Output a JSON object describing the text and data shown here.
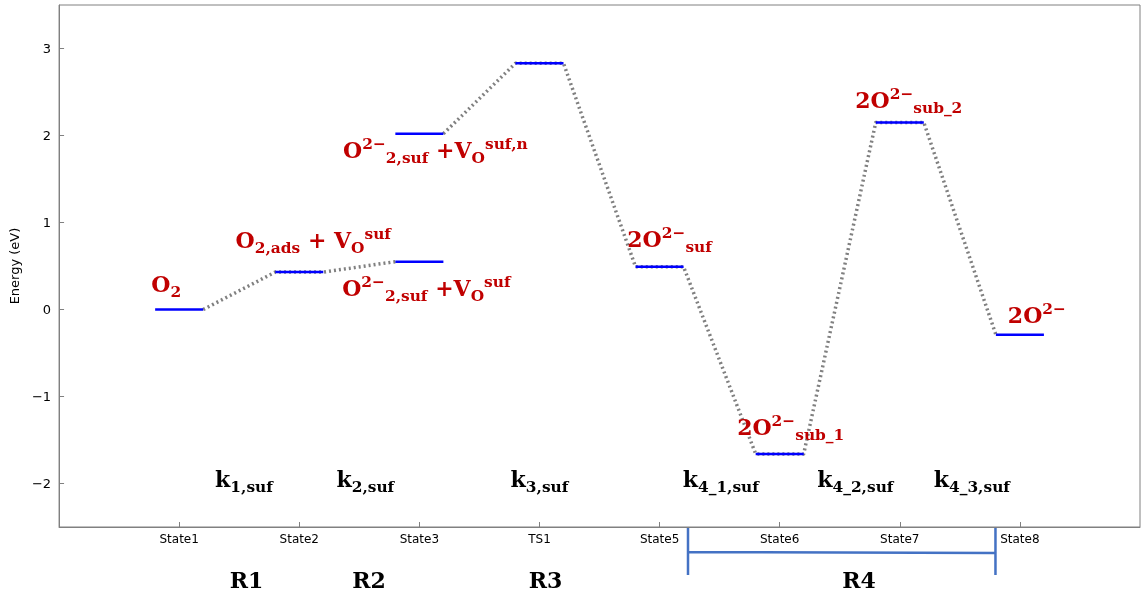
{
  "chart_data": {
    "type": "line",
    "ylabel": "Energy (eV)",
    "categories": [
      null,
      null,
      null,
      null,
      null,
      "State1",
      null,
      null,
      null,
      null,
      "State2",
      null,
      null,
      null,
      null,
      "State3",
      null,
      null,
      null,
      null,
      "TS1",
      null,
      null,
      null,
      null,
      "State5",
      null,
      null,
      null,
      null,
      "State6",
      null,
      null,
      null,
      null,
      "State7",
      null,
      null,
      null,
      null,
      "State8",
      null,
      null,
      null,
      null,
      null
    ],
    "ylim": [
      -2.5,
      3.5
    ],
    "yticks": [
      -2,
      -1,
      0,
      1,
      2,
      3
    ],
    "grid": false,
    "series": [
      {
        "color": "#808080",
        "line_style": "dotted",
        "values": [
          null,
          null,
          null,
          null,
          null,
          null,
          0,
          null,
          null,
          0.43,
          null,
          0.43,
          null,
          null,
          0.55,
          null,
          null,
          null,
          null,
          null,
          null,
          null,
          null,
          null,
          null,
          null,
          null,
          null,
          null,
          null,
          null,
          null,
          null,
          null,
          null,
          null,
          null,
          null,
          null,
          null,
          null,
          null,
          null,
          null,
          null,
          null
        ]
      },
      {
        "color": "#808080",
        "line_style": "dotted",
        "values": [
          null,
          null,
          null,
          null,
          null,
          null,
          null,
          null,
          null,
          null,
          null,
          null,
          null,
          null,
          null,
          null,
          2.02,
          null,
          null,
          2.83,
          null,
          2.83,
          null,
          null,
          0.49,
          null,
          0.49,
          null,
          null,
          -1.66,
          null,
          -1.66,
          null,
          null,
          2.15,
          null,
          2.15,
          null,
          null,
          -0.29,
          null,
          null,
          null,
          null,
          null,
          null
        ]
      },
      {
        "color": "#0000ff",
        "line_style": "solid",
        "values": [
          null,
          null,
          null,
          null,
          0,
          0,
          0,
          null,
          null,
          null,
          null,
          null,
          null,
          null,
          null,
          null,
          null,
          null,
          null,
          null,
          null,
          null,
          null,
          null,
          null,
          null,
          null,
          null,
          null,
          null,
          null,
          null,
          null,
          null,
          null,
          null,
          null,
          null,
          null,
          null,
          null,
          null,
          null,
          null,
          null,
          null
        ]
      },
      {
        "color": "#0000ff",
        "line_style": "solid",
        "values": [
          null,
          null,
          null,
          null,
          null,
          null,
          null,
          null,
          null,
          0.43,
          0.43,
          0.43,
          null,
          null,
          null,
          null,
          null,
          null,
          null,
          null,
          null,
          null,
          null,
          null,
          null,
          null,
          null,
          null,
          null,
          null,
          null,
          null,
          null,
          null,
          null,
          null,
          null,
          null,
          null,
          null,
          null,
          null,
          null,
          null,
          null,
          null
        ]
      },
      {
        "color": "#0000ff",
        "line_style": "solid",
        "values": [
          null,
          null,
          null,
          null,
          null,
          null,
          null,
          null,
          null,
          null,
          null,
          null,
          null,
          null,
          0.55,
          0.55,
          0.55,
          null,
          null,
          null,
          null,
          null,
          null,
          null,
          null,
          null,
          null,
          null,
          null,
          null,
          null,
          null,
          null,
          null,
          null,
          null,
          null,
          null,
          null,
          null,
          null,
          null,
          null,
          null,
          null,
          null
        ]
      },
      {
        "color": "#0000ff",
        "line_style": "solid",
        "values": [
          null,
          null,
          null,
          null,
          null,
          null,
          null,
          null,
          null,
          null,
          null,
          null,
          null,
          null,
          2.02,
          2.02,
          2.02,
          null,
          null,
          null,
          null,
          null,
          null,
          null,
          null,
          null,
          null,
          null,
          null,
          null,
          null,
          null,
          null,
          null,
          null,
          null,
          null,
          null,
          null,
          null,
          null,
          null,
          null,
          null,
          null,
          null
        ]
      },
      {
        "color": "#0000ff",
        "line_style": "solid",
        "values": [
          null,
          null,
          null,
          null,
          null,
          null,
          null,
          null,
          null,
          null,
          null,
          null,
          null,
          null,
          null,
          null,
          null,
          null,
          null,
          2.83,
          2.83,
          2.83,
          null,
          null,
          null,
          null,
          null,
          null,
          null,
          null,
          null,
          null,
          null,
          null,
          null,
          null,
          null,
          null,
          null,
          null,
          null,
          null,
          null,
          null,
          null,
          null
        ]
      },
      {
        "color": "#0000ff",
        "line_style": "solid",
        "values": [
          null,
          null,
          null,
          null,
          null,
          null,
          null,
          null,
          null,
          null,
          null,
          null,
          null,
          null,
          null,
          null,
          null,
          null,
          null,
          null,
          null,
          null,
          null,
          null,
          0.49,
          0.49,
          0.49,
          null,
          null,
          null,
          null,
          null,
          null,
          null,
          null,
          null,
          null,
          null,
          null,
          null,
          null,
          null,
          null,
          null,
          null,
          null
        ]
      },
      {
        "color": "#0000ff",
        "line_style": "solid",
        "values": [
          null,
          null,
          null,
          null,
          null,
          null,
          null,
          null,
          null,
          null,
          null,
          null,
          null,
          null,
          null,
          null,
          null,
          null,
          null,
          null,
          null,
          null,
          null,
          null,
          null,
          null,
          null,
          null,
          null,
          -1.66,
          -1.66,
          -1.66,
          null,
          null,
          null,
          null,
          null,
          null,
          null,
          null,
          null,
          null,
          null,
          null,
          null,
          null
        ]
      },
      {
        "color": "#0000ff",
        "line_style": "solid",
        "values": [
          null,
          null,
          null,
          null,
          null,
          null,
          null,
          null,
          null,
          null,
          null,
          null,
          null,
          null,
          null,
          null,
          null,
          null,
          null,
          null,
          null,
          null,
          null,
          null,
          null,
          null,
          null,
          null,
          null,
          null,
          null,
          null,
          null,
          null,
          2.15,
          2.15,
          2.15,
          null,
          null,
          null,
          null,
          null,
          null,
          null,
          null,
          null
        ]
      },
      {
        "color": "#0000ff",
        "line_style": "solid",
        "values": [
          null,
          null,
          null,
          null,
          null,
          null,
          null,
          null,
          null,
          null,
          null,
          null,
          null,
          null,
          null,
          null,
          null,
          null,
          null,
          null,
          null,
          null,
          null,
          null,
          null,
          null,
          null,
          null,
          null,
          null,
          null,
          null,
          null,
          null,
          null,
          null,
          null,
          null,
          null,
          -0.29,
          -0.29,
          -0.29,
          null,
          null,
          null,
          null
        ]
      }
    ],
    "annotations": [
      {
        "text": "O$_{2}$",
        "x": "State1",
        "y": 0
      },
      {
        "text": "O$_{2,ads}$ + V$_{O}$$^{suf}$",
        "x": "State2",
        "y": 0.43
      },
      {
        "text": "O$^{2−}$$_{2,suf}$ +V$_{O}$$^{suf}$",
        "x": "State3",
        "y": 0.55
      },
      {
        "text": "O$^{2−}$$_{2,suf}$ +V$_{O}$$^{suf,n}$",
        "x": "State3",
        "y": 2.02
      },
      {
        "text": "2O$^{2−}$$_{suf}$",
        "x": "State5",
        "y": 0.49
      },
      {
        "text": "2O$^{2−}$$_{sub_1}$",
        "x": "State6",
        "y": -1.66
      },
      {
        "text": "2O$^{2−}$$_{sub_2}$",
        "x": "State7",
        "y": 2.15
      },
      {
        "text": "2O$^{2−}$",
        "x": "State8",
        "y": -0.29
      },
      "k$_{1,suf}$",
      "k$_{2,suf}$",
      "k$_{3,suf}$",
      "k$_{4_1,suf}$",
      "k$_{4_2,suf}$",
      "k$_{4_3,suf}$",
      "R1",
      "R2",
      "R3",
      "R4"
    ]
  }
}
